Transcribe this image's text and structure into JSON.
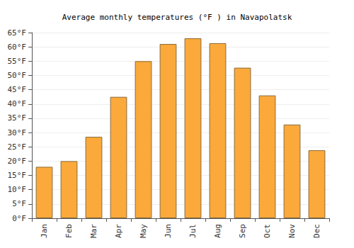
{
  "chart_data": {
    "type": "bar",
    "title": "Average monthly temperatures (°F ) in Navapolatsk",
    "categories": [
      "Jan",
      "Feb",
      "Mar",
      "Apr",
      "May",
      "Jun",
      "Jul",
      "Aug",
      "Sep",
      "Oct",
      "Nov",
      "Dec"
    ],
    "values": [
      18,
      20,
      28.5,
      42.5,
      55,
      61,
      63,
      61.3,
      52.7,
      43,
      32.8,
      23.8
    ],
    "color": "#fba93a",
    "ylim": [
      0,
      65
    ],
    "yticks": [
      {
        "value": 0,
        "label": "0°F"
      },
      {
        "value": 5,
        "label": "5°F"
      },
      {
        "value": 10,
        "label": "10°F"
      },
      {
        "value": 15,
        "label": "15°F"
      },
      {
        "value": 20,
        "label": "20°F"
      },
      {
        "value": 25,
        "label": "25°F"
      },
      {
        "value": 30,
        "label": "30°F"
      },
      {
        "value": 35,
        "label": "35°F"
      },
      {
        "value": 40,
        "label": "40°F"
      },
      {
        "value": 45,
        "label": "45°F"
      },
      {
        "value": 50,
        "label": "50°F"
      },
      {
        "value": 55,
        "label": "55°F"
      },
      {
        "value": 60,
        "label": "60°F"
      },
      {
        "value": 65,
        "label": "65°F"
      }
    ],
    "grid": true
  }
}
